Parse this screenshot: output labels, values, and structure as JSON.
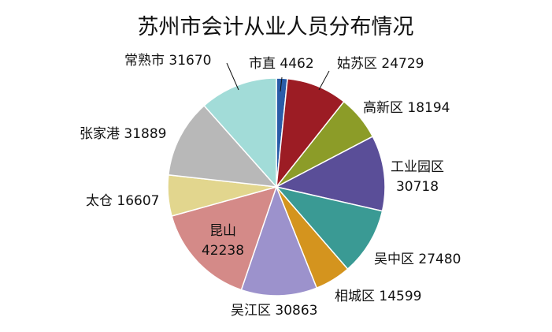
{
  "chart_data": {
    "type": "pie",
    "title": "苏州市会计从业人员分布情况",
    "start": "12 o'clock, clockwise",
    "slices": [
      {
        "name": "市直",
        "value": 4462,
        "color": "#2a5ca8",
        "label": "市直 4462"
      },
      {
        "name": "姑苏区",
        "value": 24729,
        "color": "#9c1c24",
        "label": "姑苏区 24729"
      },
      {
        "name": "高新区",
        "value": 18194,
        "color": "#8c9c28",
        "label": "高新区 18194"
      },
      {
        "name": "工业园区",
        "value": 30718,
        "color": "#5a4e98",
        "label": [
          "工业园区",
          "30718"
        ]
      },
      {
        "name": "吴中区",
        "value": 27480,
        "color": "#3a9a94",
        "label": "吴中区 27480"
      },
      {
        "name": "相城区",
        "value": 14599,
        "color": "#d4941e",
        "label": "相城区 14599"
      },
      {
        "name": "吴江区",
        "value": 30863,
        "color": "#9c92cc",
        "label": "吴江区 30863"
      },
      {
        "name": "昆山",
        "value": 42238,
        "color": "#d48a88",
        "label": [
          "昆山",
          "42238"
        ]
      },
      {
        "name": "太仓",
        "value": 16607,
        "color": "#e2d68e",
        "label": "太仓 16607"
      },
      {
        "name": "张家港",
        "value": 31889,
        "color": "#b8b8b8",
        "label": "张家港 31889"
      },
      {
        "name": "常熟市",
        "value": 31670,
        "color": "#a2dcd8",
        "label": "常熟市 31670"
      }
    ]
  }
}
